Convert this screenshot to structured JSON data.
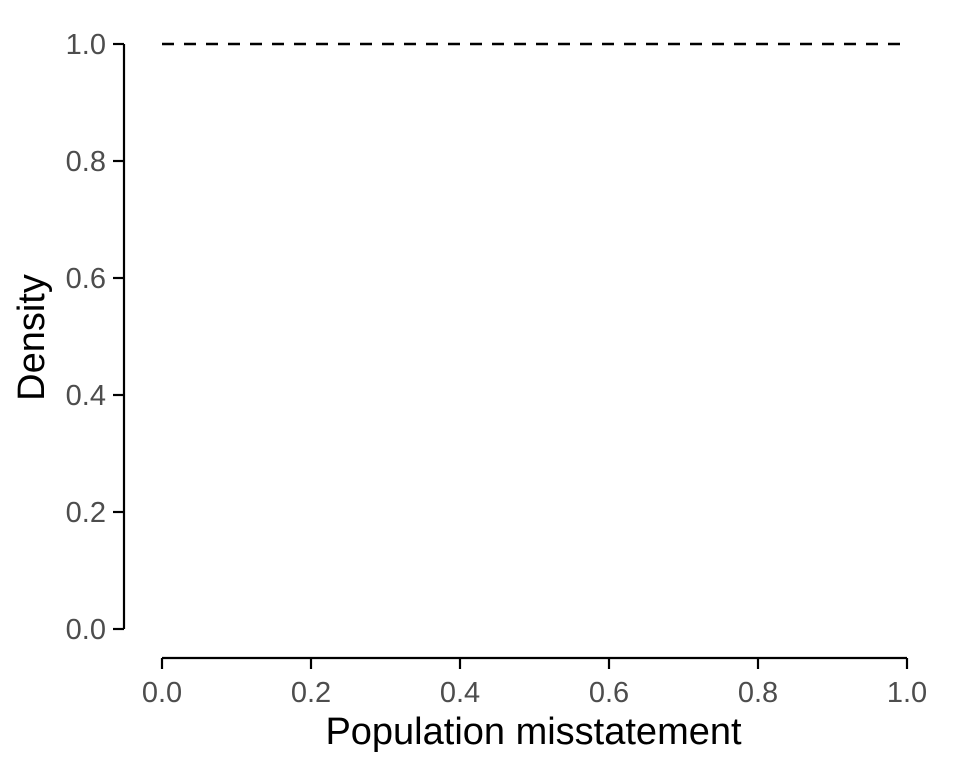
{
  "chart_data": {
    "type": "line",
    "title": "",
    "xlabel": "Population misstatement",
    "ylabel": "Density",
    "xlim": [
      0.0,
      1.0
    ],
    "ylim": [
      0.0,
      1.0
    ],
    "x_ticks": [
      "0.0",
      "0.2",
      "0.4",
      "0.6",
      "0.8",
      "1.0"
    ],
    "y_ticks": [
      "0.0",
      "0.2",
      "0.4",
      "0.6",
      "0.8",
      "1.0"
    ],
    "grid": false,
    "legend": "none",
    "series": [
      {
        "line_style": "dashed",
        "color": "#000000",
        "x": [
          0.0,
          1.0
        ],
        "y": [
          1.0,
          1.0
        ]
      }
    ]
  }
}
